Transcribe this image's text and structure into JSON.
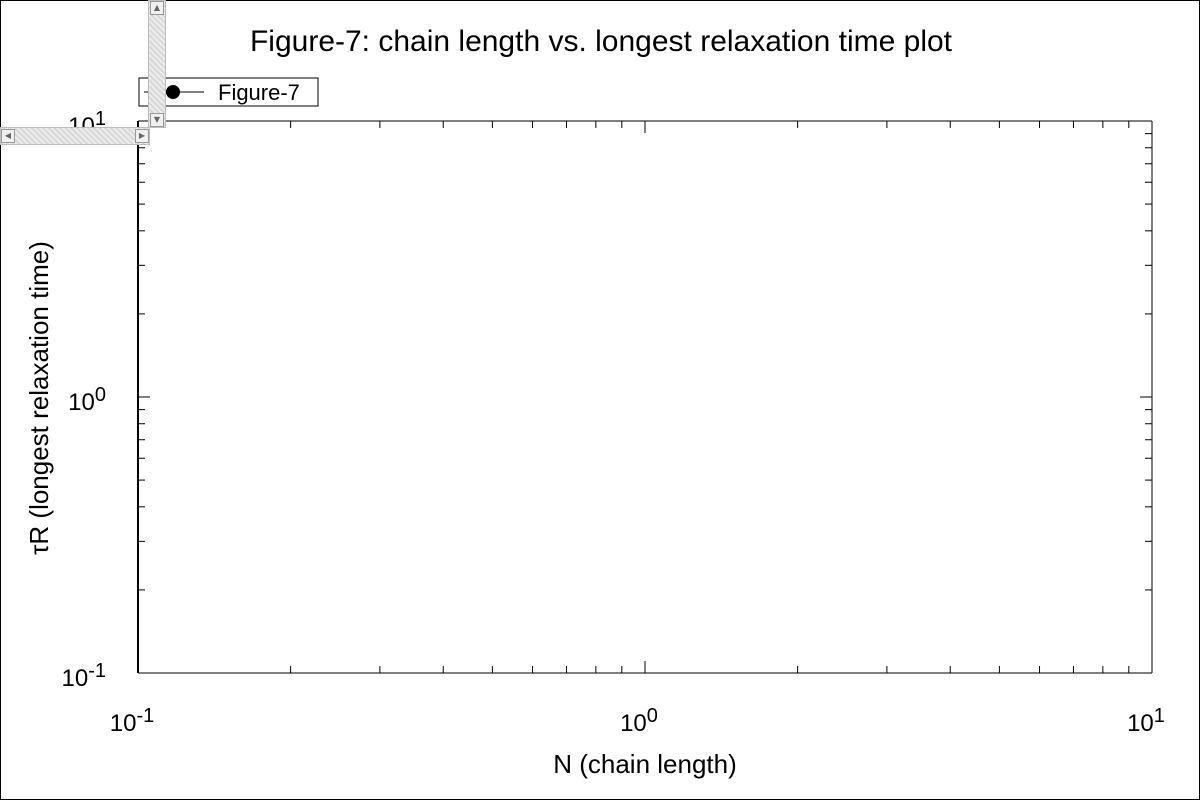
{
  "chart_data": {
    "type": "line",
    "title": "Figure-7: chain length vs. longest relaxation time plot",
    "xlabel": "N (chain length)",
    "ylabel": "τR (longest relaxation time)",
    "xscale": "log",
    "yscale": "log",
    "xlim": [
      0.1,
      10
    ],
    "ylim": [
      0.1,
      10
    ],
    "x_ticks": [
      {
        "base": "10",
        "exp": "-1",
        "value": 0.1
      },
      {
        "base": "10",
        "exp": "0",
        "value": 1
      },
      {
        "base": "10",
        "exp": "1",
        "value": 10
      }
    ],
    "y_ticks": [
      {
        "base": "10",
        "exp": "-1",
        "value": 0.1
      },
      {
        "base": "10",
        "exp": "0",
        "value": 1
      },
      {
        "base": "10",
        "exp": "1",
        "value": 10
      }
    ],
    "series": [
      {
        "name": "Figure-7",
        "marker": "circle",
        "color": "#000000",
        "x": [],
        "y": []
      }
    ],
    "legend": "top-left",
    "grid": false
  },
  "scrollbars": {
    "up_arrow": "▲",
    "down_arrow": "▼",
    "left_arrow": "◀",
    "right_arrow": "▶"
  }
}
